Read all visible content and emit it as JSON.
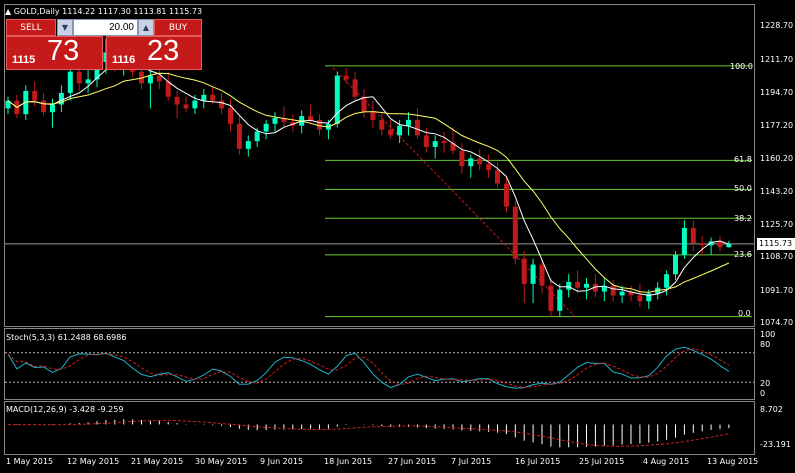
{
  "header": {
    "symbol_info": "GOLD,Daily  1114.22 1117.30 1113.81 1115.73"
  },
  "trade_panel": {
    "sell_label": "SELL",
    "buy_label": "BUY",
    "lot_value": "20.00",
    "lot_down_icon": "triangle-down",
    "lot_up_icon": "triangle-up",
    "bid_small": "1115",
    "bid_big": "73",
    "ask_small": "1116",
    "ask_big": "23"
  },
  "price_axis": {
    "ticks": [
      "1228.70",
      "1211.70",
      "1194.70",
      "1177.20",
      "1160.20",
      "1143.20",
      "1125.70",
      "1108.70",
      "1091.70",
      "1074.70"
    ],
    "current_price": "1115.73"
  },
  "fibonacci": {
    "levels": [
      "100.0",
      "61.8",
      "50.0",
      "38.2",
      "23.6",
      "0.0"
    ]
  },
  "date_axis": {
    "labels": [
      "1 May 2015",
      "12 May 2015",
      "21 May 2015",
      "30 May 2015",
      "9 Jun 2015",
      "18 Jun 2015",
      "27 Jun 2015",
      "7 Jul 2015",
      "16 Jul 2015",
      "25 Jul 2015",
      "4 Aug 2015",
      "13 Aug 2015"
    ]
  },
  "stochastic": {
    "title": "Stoch(5,3,3) 61.2488 68.6986",
    "levels": [
      "100",
      "80",
      "20",
      "0"
    ]
  },
  "macd": {
    "title": "MACD(12,26,9) -3.428 -9.259",
    "levels": [
      "8.702",
      "-23.191"
    ]
  },
  "colors": {
    "bull": "#00ffc0",
    "bear": "#c01a1a",
    "ma_fast": "#ffffff",
    "ma_slow": "#ffff66",
    "fib": "#66cc33",
    "stoch_main": "#20b2c8",
    "stoch_signal": "#d02020",
    "macd_hist": "#ffffff",
    "macd_signal": "#d02020",
    "panel_red": "#c51a1a"
  },
  "chart_data": {
    "type": "candlestick",
    "y_range": [
      1070,
      1233
    ],
    "candles": [
      [
        1186,
        1192,
        1183,
        1190
      ],
      [
        1190,
        1193,
        1181,
        1183
      ],
      [
        1183,
        1198,
        1180,
        1195
      ],
      [
        1195,
        1200,
        1187,
        1190
      ],
      [
        1190,
        1194,
        1182,
        1184
      ],
      [
        1184,
        1191,
        1176,
        1188
      ],
      [
        1188,
        1198,
        1184,
        1194
      ],
      [
        1194,
        1208,
        1190,
        1205
      ],
      [
        1205,
        1210,
        1195,
        1199
      ],
      [
        1199,
        1207,
        1194,
        1201
      ],
      [
        1201,
        1214,
        1197,
        1210
      ],
      [
        1210,
        1222,
        1204,
        1215
      ],
      [
        1215,
        1220,
        1205,
        1208
      ],
      [
        1208,
        1216,
        1203,
        1212
      ],
      [
        1212,
        1214,
        1202,
        1205
      ],
      [
        1205,
        1210,
        1196,
        1199
      ],
      [
        1199,
        1206,
        1186,
        1203
      ],
      [
        1203,
        1207,
        1196,
        1200
      ],
      [
        1200,
        1205,
        1190,
        1192
      ],
      [
        1192,
        1195,
        1181,
        1188
      ],
      [
        1188,
        1192,
        1184,
        1186
      ],
      [
        1186,
        1193,
        1183,
        1190
      ],
      [
        1190,
        1196,
        1186,
        1193
      ],
      [
        1193,
        1197,
        1188,
        1190
      ],
      [
        1190,
        1194,
        1183,
        1186
      ],
      [
        1186,
        1191,
        1174,
        1178
      ],
      [
        1178,
        1182,
        1162,
        1165
      ],
      [
        1165,
        1172,
        1161,
        1169
      ],
      [
        1169,
        1176,
        1166,
        1174
      ],
      [
        1174,
        1180,
        1170,
        1178
      ],
      [
        1178,
        1184,
        1174,
        1181
      ],
      [
        1181,
        1187,
        1176,
        1179
      ],
      [
        1179,
        1183,
        1174,
        1177
      ],
      [
        1177,
        1185,
        1173,
        1182
      ],
      [
        1182,
        1188,
        1178,
        1180
      ],
      [
        1180,
        1183,
        1172,
        1175
      ],
      [
        1175,
        1180,
        1170,
        1178
      ],
      [
        1178,
        1205,
        1176,
        1203
      ],
      [
        1203,
        1207,
        1199,
        1201
      ],
      [
        1201,
        1205,
        1190,
        1192
      ],
      [
        1192,
        1196,
        1181,
        1184
      ],
      [
        1184,
        1190,
        1176,
        1180
      ],
      [
        1180,
        1184,
        1172,
        1175
      ],
      [
        1175,
        1180,
        1170,
        1172
      ],
      [
        1172,
        1180,
        1168,
        1177
      ],
      [
        1177,
        1184,
        1172,
        1180
      ],
      [
        1180,
        1186,
        1170,
        1172
      ],
      [
        1172,
        1176,
        1163,
        1166
      ],
      [
        1166,
        1172,
        1160,
        1169
      ],
      [
        1169,
        1174,
        1163,
        1168
      ],
      [
        1168,
        1176,
        1162,
        1164
      ],
      [
        1164,
        1168,
        1152,
        1156
      ],
      [
        1156,
        1162,
        1150,
        1160
      ],
      [
        1160,
        1165,
        1154,
        1157
      ],
      [
        1157,
        1162,
        1150,
        1154
      ],
      [
        1154,
        1158,
        1145,
        1147
      ],
      [
        1147,
        1150,
        1132,
        1135
      ],
      [
        1135,
        1138,
        1105,
        1108
      ],
      [
        1108,
        1112,
        1085,
        1095
      ],
      [
        1095,
        1108,
        1085,
        1105
      ],
      [
        1105,
        1108,
        1090,
        1094
      ],
      [
        1094,
        1098,
        1078,
        1081
      ],
      [
        1081,
        1095,
        1078,
        1092
      ],
      [
        1092,
        1100,
        1088,
        1096
      ],
      [
        1096,
        1102,
        1090,
        1093
      ],
      [
        1093,
        1098,
        1087,
        1095
      ],
      [
        1095,
        1100,
        1088,
        1091
      ],
      [
        1091,
        1098,
        1086,
        1094
      ],
      [
        1094,
        1097,
        1086,
        1089
      ],
      [
        1089,
        1094,
        1085,
        1091
      ],
      [
        1091,
        1094,
        1086,
        1089
      ],
      [
        1089,
        1095,
        1083,
        1086
      ],
      [
        1086,
        1092,
        1082,
        1090
      ],
      [
        1090,
        1096,
        1087,
        1093
      ],
      [
        1093,
        1102,
        1089,
        1100
      ],
      [
        1100,
        1112,
        1097,
        1110
      ],
      [
        1110,
        1128,
        1108,
        1124
      ],
      [
        1124,
        1128,
        1112,
        1116
      ],
      [
        1116,
        1120,
        1110,
        1115
      ],
      [
        1115,
        1119,
        1110,
        1117
      ],
      [
        1117,
        1120,
        1112,
        1114
      ],
      [
        1114,
        1117.3,
        1113.81,
        1115.73
      ]
    ],
    "fib_price_levels": [
      1208,
      1159,
      1144,
      1129,
      1110,
      1078
    ]
  }
}
